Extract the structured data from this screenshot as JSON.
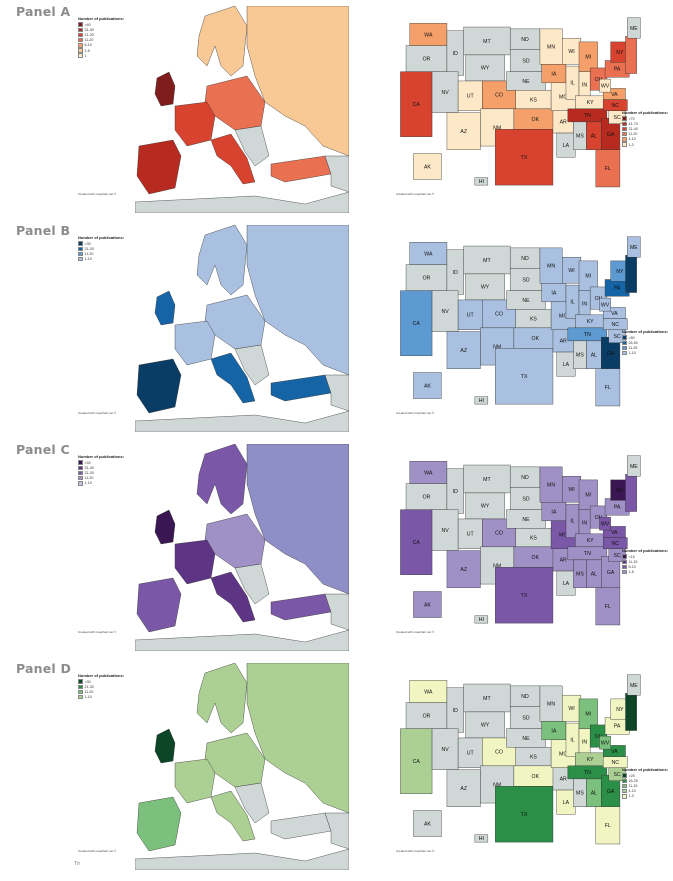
{
  "colors": {
    "background_gray": "#cfd8d6",
    "border": "#333333"
  },
  "legend_title": "Number of publications:",
  "credit_text": "Created with mapchart.net ©",
  "footer_text": "T/r",
  "panels": [
    {
      "label": "Panel A",
      "europe_legend": [
        {
          "label": ">40",
          "color": "#7f1d1d"
        },
        {
          "label": "31-40",
          "color": "#b72a20"
        },
        {
          "label": "21-30",
          "color": "#d7432f"
        },
        {
          "label": "11-20",
          "color": "#ea7052"
        },
        {
          "label": "6-10",
          "color": "#f5a06b"
        },
        {
          "label": "2-5",
          "color": "#f9c995"
        },
        {
          "label": "1",
          "color": "#fde8c8"
        }
      ],
      "us_legend": [
        {
          "label": ">70",
          "color": "#7f1d1d"
        },
        {
          "label": "41-70",
          "color": "#b72a20"
        },
        {
          "label": "21-40",
          "color": "#d7432f"
        },
        {
          "label": "11-20",
          "color": "#ea7052"
        },
        {
          "label": "4-10",
          "color": "#f5a06b"
        },
        {
          "label": "1-3",
          "color": "#fde8c8"
        }
      ],
      "europe_regions": {
        "west": "#d7432f",
        "uk": "#7f1d1d",
        "iberia": "#b72a20",
        "central": "#ea7052",
        "nordic": "#f9c995",
        "italy": "#d7432f",
        "east": "#f9c995",
        "turkey": "#ea7052"
      },
      "states": {
        "WA": "#f5a06b",
        "OR": "gray",
        "CA": "#d7432f",
        "ID": "gray",
        "NV": "gray",
        "MT": "gray",
        "WY": "gray",
        "UT": "#fde8c8",
        "AZ": "#fde8c8",
        "CO": "#f5a06b",
        "NM": "#fde8c8",
        "ND": "gray",
        "SD": "gray",
        "NE": "gray",
        "KS": "#fde8c8",
        "OK": "#f5a06b",
        "TX": "#d7432f",
        "MN": "#fde8c8",
        "IA": "#f5a06b",
        "MO": "#fde8c8",
        "AR": "#fde8c8",
        "LA": "gray",
        "WI": "#fde8c8",
        "IL": "#fde8c8",
        "MI": "#f5a06b",
        "IN": "#fde8c8",
        "OH": "#ea7052",
        "KY": "#fde8c8",
        "TN": "#b72a20",
        "MS": "gray",
        "AL": "#d7432f",
        "GA": "#b72a20",
        "FL": "#ea7052",
        "SC": "#fde8c8",
        "NC": "#d7432f",
        "VA": "#f5a06b",
        "WV": "#fde8c8",
        "PA": "#ea7052",
        "NY": "#d7432f",
        "NE_": "#ea7052",
        "ME": "gray",
        "AK": "#fde8c8",
        "HI": "gray"
      }
    },
    {
      "label": "Panel B",
      "europe_legend": [
        {
          "label": ">30",
          "color": "#0a3d66"
        },
        {
          "label": "21-30",
          "color": "#1564a6"
        },
        {
          "label": "11-20",
          "color": "#5d9ad2"
        },
        {
          "label": "1-10",
          "color": "#a9c0e0"
        }
      ],
      "us_legend": [
        {
          "label": ">50",
          "color": "#0a3d66"
        },
        {
          "label": "26-50",
          "color": "#1564a6"
        },
        {
          "label": "11-25",
          "color": "#5d9ad2"
        },
        {
          "label": "1-10",
          "color": "#a9c0e0"
        }
      ],
      "europe_regions": {
        "west": "#a9c0e0",
        "uk": "#1564a6",
        "iberia": "#0a3d66",
        "central": "#a9c0e0",
        "nordic": "#a9c0e0",
        "italy": "#1564a6",
        "east": "#a9c0e0",
        "turkey": "#1564a6"
      },
      "states": {
        "WA": "#a9c0e0",
        "OR": "gray",
        "CA": "#5d9ad2",
        "ID": "gray",
        "NV": "gray",
        "MT": "gray",
        "WY": "gray",
        "UT": "#a9c0e0",
        "AZ": "#a9c0e0",
        "CO": "#a9c0e0",
        "NM": "#a9c0e0",
        "ND": "gray",
        "SD": "gray",
        "NE": "gray",
        "KS": "gray",
        "OK": "#a9c0e0",
        "TX": "#a9c0e0",
        "MN": "#a9c0e0",
        "IA": "#a9c0e0",
        "MO": "#a9c0e0",
        "AR": "#a9c0e0",
        "LA": "gray",
        "WI": "#a9c0e0",
        "IL": "#a9c0e0",
        "MI": "#a9c0e0",
        "IN": "#a9c0e0",
        "OH": "#a9c0e0",
        "KY": "#a9c0e0",
        "TN": "#5d9ad2",
        "MS": "gray",
        "AL": "#a9c0e0",
        "GA": "#0a3d66",
        "FL": "#a9c0e0",
        "SC": "#a9c0e0",
        "NC": "#a9c0e0",
        "VA": "#a9c0e0",
        "WV": "#a9c0e0",
        "PA": "#1564a6",
        "NY": "#5d9ad2",
        "NE_": "#0a3d66",
        "ME": "#a9c0e0",
        "AK": "#a9c0e0",
        "HI": "gray"
      }
    },
    {
      "label": "Panel C",
      "europe_legend": [
        {
          "label": ">40",
          "color": "#3a1752"
        },
        {
          "label": "31-40",
          "color": "#5e3585"
        },
        {
          "label": "21-30",
          "color": "#7b57a8"
        },
        {
          "label": "11-20",
          "color": "#9f90c6"
        },
        {
          "label": "1-10",
          "color": "#c4c2e2"
        }
      ],
      "us_legend": [
        {
          "label": ">15",
          "color": "#3a1752"
        },
        {
          "label": "11-15",
          "color": "#5e3585"
        },
        {
          "label": "6-10",
          "color": "#7b57a8"
        },
        {
          "label": "1-5",
          "color": "#9f90c6"
        }
      ],
      "europe_regions": {
        "west": "#5e3585",
        "uk": "#3a1752",
        "iberia": "#7b57a8",
        "central": "#9f90c6",
        "nordic": "#7b57a8",
        "italy": "#5e3585",
        "east": "#8f8fc7",
        "turkey": "#7b57a8"
      },
      "states": {
        "WA": "#9f90c6",
        "OR": "gray",
        "CA": "#7b57a8",
        "ID": "gray",
        "NV": "gray",
        "MT": "gray",
        "WY": "gray",
        "UT": "gray",
        "AZ": "#9f90c6",
        "CO": "#9f90c6",
        "NM": "gray",
        "ND": "gray",
        "SD": "gray",
        "NE": "gray",
        "KS": "gray",
        "OK": "#9f90c6",
        "TX": "#7b57a8",
        "MN": "#9f90c6",
        "IA": "#9f90c6",
        "MO": "#7b57a8",
        "AR": "#9f90c6",
        "LA": "gray",
        "WI": "#9f90c6",
        "IL": "#9f90c6",
        "MI": "#9f90c6",
        "IN": "#9f90c6",
        "OH": "#9f90c6",
        "KY": "#9f90c6",
        "TN": "#9f90c6",
        "MS": "#9f90c6",
        "AL": "#9f90c6",
        "GA": "#9f90c6",
        "FL": "#9f90c6",
        "SC": "#9f90c6",
        "NC": "#7b57a8",
        "VA": "#7b57a8",
        "WV": "#7b57a8",
        "PA": "#9f90c6",
        "NY": "#3a1752",
        "NE_": "#7b57a8",
        "ME": "gray",
        "AK": "#9f90c6",
        "HI": "gray"
      }
    },
    {
      "label": "Panel  D",
      "europe_legend": [
        {
          "label": ">30",
          "color": "#0d4527"
        },
        {
          "label": "21-30",
          "color": "#2b8f47"
        },
        {
          "label": "11-20",
          "color": "#7bc07c"
        },
        {
          "label": "1-10",
          "color": "#acd093"
        }
      ],
      "us_legend": [
        {
          "label": ">25",
          "color": "#0d4527"
        },
        {
          "label": "16-25",
          "color": "#2b8f47"
        },
        {
          "label": "11-15",
          "color": "#7bc07c"
        },
        {
          "label": "4-10",
          "color": "#acd093"
        },
        {
          "label": "1-3",
          "color": "#f1f5c2"
        }
      ],
      "europe_regions": {
        "west": "#acd093",
        "uk": "#0d4527",
        "iberia": "#7bc07c",
        "central": "#acd093",
        "nordic": "#acd093",
        "italy": "#acd093",
        "east": "#acd093",
        "turkey": "#cfd8d6"
      },
      "states": {
        "WA": "#f1f5c2",
        "OR": "gray",
        "CA": "#acd093",
        "ID": "gray",
        "NV": "gray",
        "MT": "gray",
        "WY": "gray",
        "UT": "gray",
        "AZ": "gray",
        "CO": "#f1f5c2",
        "NM": "gray",
        "ND": "gray",
        "SD": "gray",
        "NE": "gray",
        "KS": "gray",
        "OK": "#f1f5c2",
        "TX": "#2b8f47",
        "MN": "gray",
        "IA": "#7bc07c",
        "MO": "#f1f5c2",
        "AR": "gray",
        "LA": "#f1f5c2",
        "WI": "#f1f5c2",
        "IL": "#f1f5c2",
        "MI": "#7bc07c",
        "IN": "#f1f5c2",
        "OH": "#2b8f47",
        "KY": "#acd093",
        "TN": "#2b8f47",
        "MS": "gray",
        "AL": "#7bc07c",
        "GA": "#2b8f47",
        "FL": "#f1f5c2",
        "SC": "#acd093",
        "NC": "#f1f5c2",
        "VA": "#2b8f47",
        "WV": "#7bc07c",
        "PA": "#f1f5c2",
        "NY": "#f1f5c2",
        "NE_": "#0d4527",
        "ME": "gray",
        "AK": "gray",
        "HI": "gray"
      }
    }
  ]
}
